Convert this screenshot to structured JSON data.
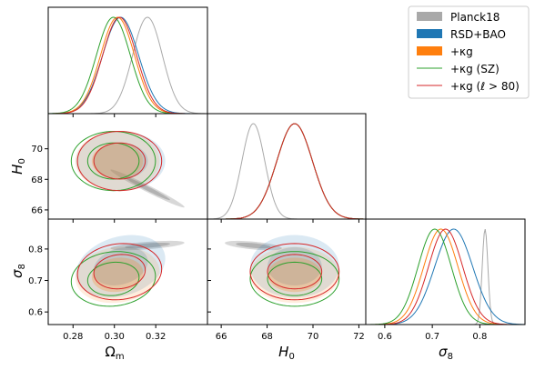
{
  "chart_data": {
    "type": "scatter",
    "subtype": "corner-plot",
    "legend_position": "top-right",
    "parameters": [
      "omega_m",
      "H0",
      "sigma8"
    ],
    "axis_labels": {
      "omega_m": "Ωm",
      "H0": "H0",
      "sigma8": "σ8"
    },
    "axis_label_parts": {
      "omega_m": {
        "base": "Ω",
        "sub": "m"
      },
      "H0": {
        "base": "H",
        "sub": "0"
      },
      "sigma8": {
        "base": "σ",
        "sub": "8"
      }
    },
    "ranges": {
      "omega_m": [
        0.268,
        0.345
      ],
      "H0": [
        65.4,
        72.3
      ],
      "sigma8": [
        0.56,
        0.895
      ]
    },
    "ticks": {
      "omega_m": [
        "0.28",
        "0.30",
        "0.32"
      ],
      "H0_x": [
        "66",
        "68",
        "70",
        "72"
      ],
      "H0_y": [
        "66",
        "68",
        "70"
      ],
      "sigma8": [
        "0.6",
        "0.7",
        "0.8"
      ]
    },
    "legend": [
      {
        "label": "Planck18",
        "style": "patch"
      },
      {
        "label": "RSD+BAO",
        "style": "patch"
      },
      {
        "label": "+κg",
        "style": "patch"
      },
      {
        "label": "+κg (SZ)",
        "style": "line"
      },
      {
        "label": "+κg (ℓ > 80)",
        "style": "line"
      }
    ],
    "colors": {
      "planck": "#a9a9a9",
      "rsd_bao": "#1f77b4",
      "kg": "#ff7f0e",
      "sz": "#2ca02c",
      "l80": "#d62728"
    },
    "series": [
      {
        "name": "Planck18",
        "means": {
          "omega_m": 0.316,
          "H0": 67.4,
          "sigma8": 0.811
        },
        "sigmas": {
          "omega_m": 0.0072,
          "H0": 0.5,
          "sigma8": 0.006
        },
        "corr": {
          "omega_m_H0": -0.98,
          "omega_m_sigma8": 0.6,
          "H0_sigma8": -0.55
        }
      },
      {
        "name": "RSD+BAO",
        "means": {
          "omega_m": 0.303,
          "H0": 69.2,
          "sigma8": 0.745
        },
        "sigmas": {
          "omega_m": 0.0087,
          "H0": 0.78,
          "sigma8": 0.04
        },
        "corr": {
          "omega_m_H0": 0.0,
          "omega_m_sigma8": 0.25,
          "H0_sigma8": 0.0
        }
      },
      {
        "name": "+κg",
        "means": {
          "omega_m": 0.3015,
          "H0": 69.2,
          "sigma8": 0.718
        },
        "sigmas": {
          "omega_m": 0.0082,
          "H0": 0.78,
          "sigma8": 0.036
        },
        "corr": {
          "omega_m_H0": 0.0,
          "omega_m_sigma8": 0.12,
          "H0_sigma8": 0.0
        }
      },
      {
        "name": "+κg (SZ)",
        "means": {
          "omega_m": 0.2995,
          "H0": 69.2,
          "sigma8": 0.705
        },
        "sigmas": {
          "omega_m": 0.0082,
          "H0": 0.78,
          "sigma8": 0.035
        },
        "corr": {
          "omega_m_H0": 0.0,
          "omega_m_sigma8": 0.1,
          "H0_sigma8": 0.0
        }
      },
      {
        "name": "+κg (ℓ > 80)",
        "means": {
          "omega_m": 0.3025,
          "H0": 69.2,
          "sigma8": 0.728
        },
        "sigmas": {
          "omega_m": 0.0082,
          "H0": 0.78,
          "sigma8": 0.036
        },
        "corr": {
          "omega_m_H0": 0.0,
          "omega_m_sigma8": 0.1,
          "H0_sigma8": 0.0
        }
      }
    ]
  }
}
